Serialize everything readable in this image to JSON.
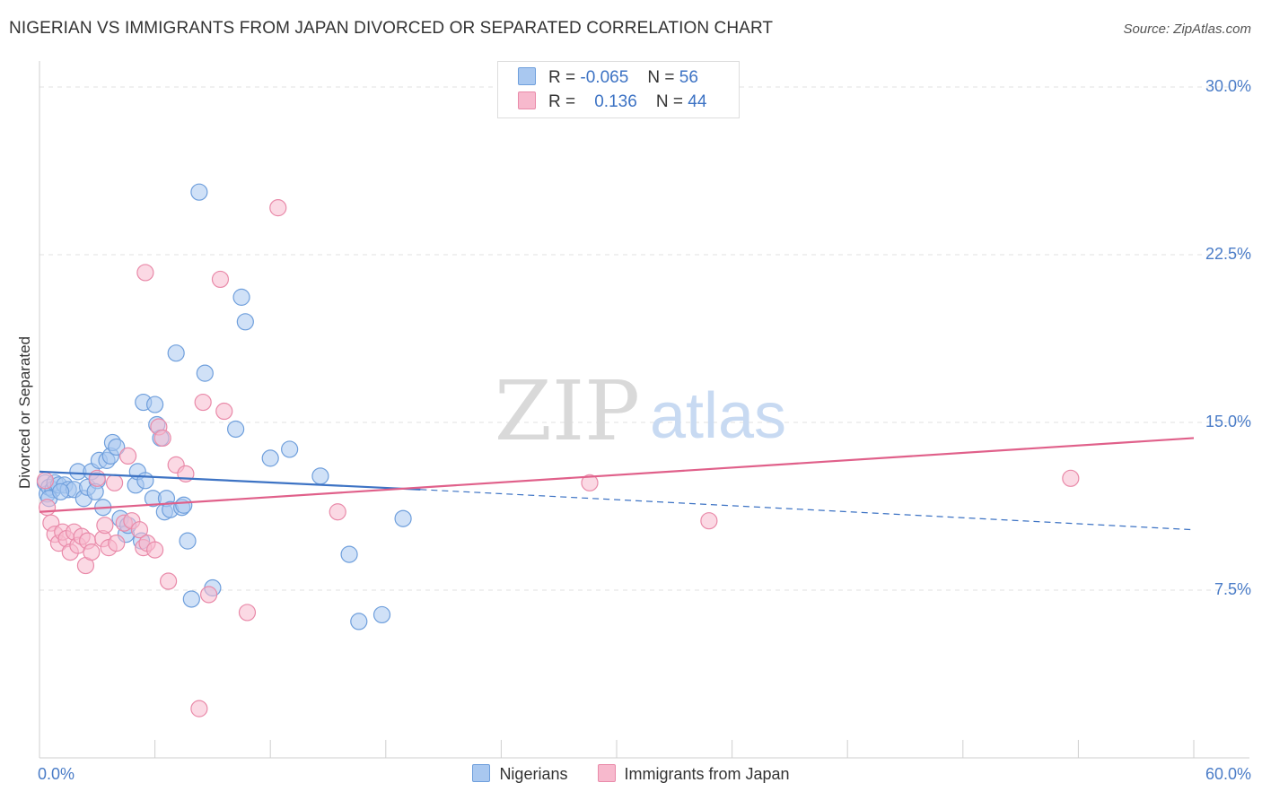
{
  "title": "NIGERIAN VS IMMIGRANTS FROM JAPAN DIVORCED OR SEPARATED CORRELATION CHART",
  "source": "Source: ZipAtlas.com",
  "watermark": {
    "zip": "ZIP",
    "atlas": "atlas"
  },
  "legend": {
    "rows": [
      {
        "r_label": "R =",
        "r_value": "-0.065",
        "n_label": "N =",
        "n_value": "56",
        "color": "#a9c8f0"
      },
      {
        "r_label": "R =",
        "r_value": "0.136",
        "n_label": "N =",
        "n_value": "44",
        "color": "#f7b9cd"
      }
    ]
  },
  "colors": {
    "blue_fill": "#a9c8f0",
    "blue_stroke": "#6f9fdc",
    "blue_line": "#3d73c4",
    "pink_fill": "#f7b9cd",
    "pink_stroke": "#e98aa9",
    "pink_line": "#e0608a",
    "tick_text": "#4a7cc7"
  },
  "chart_data": {
    "type": "scatter",
    "title": "NIGERIAN VS IMMIGRANTS FROM JAPAN DIVORCED OR SEPARATED CORRELATION CHART",
    "xlabel": "",
    "ylabel": "Divorced or Separated",
    "xlim": [
      0,
      60
    ],
    "ylim": [
      0,
      31.5
    ],
    "x_tick_labels": [
      "0.0%",
      "60.0%"
    ],
    "y_ticks": [
      7.5,
      15.0,
      22.5,
      30.0
    ],
    "y_tick_labels": [
      "7.5%",
      "15.0%",
      "22.5%",
      "30.0%"
    ],
    "grid": "horizontal dashed",
    "legend_position": "bottom",
    "series": [
      {
        "name": "Nigerians",
        "color": "#a9c8f0",
        "points": [
          [
            0.3,
            12.3
          ],
          [
            0.4,
            11.8
          ],
          [
            0.5,
            12.1
          ],
          [
            0.7,
            12.0
          ],
          [
            0.8,
            12.3
          ],
          [
            1.0,
            12.2
          ],
          [
            1.3,
            12.2
          ],
          [
            1.5,
            12.0
          ],
          [
            1.8,
            12.0
          ],
          [
            2.0,
            12.8
          ],
          [
            2.3,
            11.6
          ],
          [
            2.5,
            12.1
          ],
          [
            2.7,
            12.8
          ],
          [
            3.0,
            12.4
          ],
          [
            3.1,
            13.3
          ],
          [
            3.3,
            11.2
          ],
          [
            3.5,
            13.3
          ],
          [
            3.7,
            13.5
          ],
          [
            3.8,
            14.1
          ],
          [
            4.0,
            13.9
          ],
          [
            4.2,
            10.7
          ],
          [
            4.5,
            10.0
          ],
          [
            4.6,
            10.4
          ],
          [
            5.0,
            12.2
          ],
          [
            5.1,
            12.8
          ],
          [
            5.3,
            9.7
          ],
          [
            5.5,
            12.4
          ],
          [
            5.4,
            15.9
          ],
          [
            5.9,
            11.6
          ],
          [
            6.0,
            15.8
          ],
          [
            6.1,
            14.9
          ],
          [
            6.3,
            14.3
          ],
          [
            6.5,
            11.0
          ],
          [
            6.6,
            11.6
          ],
          [
            6.8,
            11.1
          ],
          [
            7.1,
            18.1
          ],
          [
            7.4,
            11.2
          ],
          [
            7.5,
            11.3
          ],
          [
            7.7,
            9.7
          ],
          [
            7.9,
            7.1
          ],
          [
            8.3,
            25.3
          ],
          [
            8.6,
            17.2
          ],
          [
            9.0,
            7.6
          ],
          [
            10.2,
            14.7
          ],
          [
            10.5,
            20.6
          ],
          [
            10.7,
            19.5
          ],
          [
            12.0,
            13.4
          ],
          [
            13.0,
            13.8
          ],
          [
            14.6,
            12.6
          ],
          [
            16.1,
            9.1
          ],
          [
            16.6,
            6.1
          ],
          [
            17.8,
            6.4
          ],
          [
            18.9,
            10.7
          ],
          [
            0.5,
            11.6
          ],
          [
            1.1,
            11.9
          ],
          [
            2.9,
            11.9
          ]
        ],
        "trend": {
          "x_start": 0,
          "y_start": 12.8,
          "x_solid_end": 19.8,
          "y_solid_end": 12.0,
          "x_dashed_end": 60,
          "y_dashed_end": 10.2
        }
      },
      {
        "name": "Immigrants from Japan",
        "color": "#f7b9cd",
        "points": [
          [
            0.3,
            12.4
          ],
          [
            0.4,
            11.2
          ],
          [
            0.6,
            10.5
          ],
          [
            0.8,
            10.0
          ],
          [
            1.0,
            9.6
          ],
          [
            1.2,
            10.1
          ],
          [
            1.4,
            9.8
          ],
          [
            1.6,
            9.2
          ],
          [
            1.8,
            10.1
          ],
          [
            2.0,
            9.5
          ],
          [
            2.2,
            9.9
          ],
          [
            2.4,
            8.6
          ],
          [
            2.5,
            9.7
          ],
          [
            2.7,
            9.2
          ],
          [
            3.0,
            12.5
          ],
          [
            3.3,
            9.8
          ],
          [
            3.4,
            10.4
          ],
          [
            3.6,
            9.4
          ],
          [
            3.9,
            12.3
          ],
          [
            4.0,
            9.6
          ],
          [
            4.4,
            10.5
          ],
          [
            4.6,
            13.5
          ],
          [
            4.8,
            10.6
          ],
          [
            5.2,
            10.2
          ],
          [
            5.4,
            9.4
          ],
          [
            5.6,
            9.6
          ],
          [
            5.5,
            21.7
          ],
          [
            6.0,
            9.3
          ],
          [
            6.2,
            14.8
          ],
          [
            6.4,
            14.3
          ],
          [
            6.7,
            7.9
          ],
          [
            7.1,
            13.1
          ],
          [
            7.6,
            12.7
          ],
          [
            8.3,
            2.2
          ],
          [
            8.5,
            15.9
          ],
          [
            8.8,
            7.3
          ],
          [
            9.4,
            21.4
          ],
          [
            9.6,
            15.5
          ],
          [
            10.8,
            6.5
          ],
          [
            12.4,
            24.6
          ],
          [
            15.5,
            11.0
          ],
          [
            28.6,
            12.3
          ],
          [
            34.8,
            10.6
          ],
          [
            53.6,
            12.5
          ]
        ],
        "trend": {
          "x_start": 0,
          "y_start": 11.0,
          "x_end": 60,
          "y_end": 14.3
        }
      }
    ]
  }
}
